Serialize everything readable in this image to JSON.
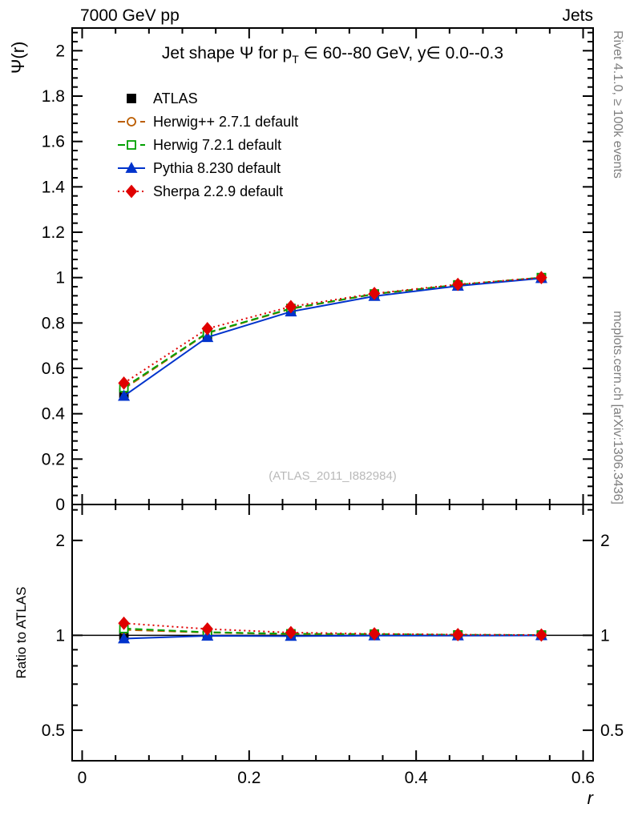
{
  "header": {
    "left": "7000 GeV pp",
    "right": "Jets"
  },
  "title": {
    "pre": "Jet shape Ψ for p",
    "sub": "T",
    "post": " ∈ 60--80 GeV, y∈ 0.0--0.3"
  },
  "watermark": "(ATLAS_2011_I882984)",
  "side_notes": {
    "top": "Rivet 4.1.0, ≥ 100k events",
    "bottom": "mcplots.cern.ch [arXiv:1306.3436]"
  },
  "colors": {
    "frame": "#000000",
    "side_note_gray": "#7f7f7f",
    "watermark_gray": "#b9b9b9"
  },
  "chart_data": {
    "type": "line",
    "title": "Jet shape Ψ for p_T ∈ 60--80 GeV, y∈ 0.0--0.3",
    "xlabel": "r",
    "ylabel_main": "Ψ(r)",
    "ylabel_ratio": "Ratio to ATLAS",
    "x": [
      0.05,
      0.15,
      0.25,
      0.35,
      0.45,
      0.55
    ],
    "xlim": [
      -0.012,
      0.612
    ],
    "main_ylim": [
      0,
      2.1
    ],
    "ratio_ylim": [
      0.4,
      2.6
    ],
    "ratio_log": true,
    "legend_position": "top-left-inside",
    "grid": false,
    "x_ticks": {
      "major": [
        0,
        0.2,
        0.4,
        0.6
      ],
      "labels": [
        "0",
        "0.2",
        "0.4",
        "0.6"
      ],
      "minor_step": 0.04
    },
    "main_y_ticks": {
      "major": [
        0,
        0.2,
        0.4,
        0.6,
        0.8,
        1,
        1.2,
        1.4,
        1.6,
        1.8,
        2
      ],
      "labels": [
        "0",
        "0.2",
        "0.4",
        "0.6",
        "0.8",
        "1",
        "1.2",
        "1.4",
        "1.6",
        "1.8",
        "2"
      ],
      "minor_step": 0.04
    },
    "ratio_y_ticks": {
      "major": [
        0.5,
        1,
        2
      ],
      "labels": [
        "0.5",
        "1",
        "2"
      ],
      "minor": [
        0.6,
        0.7,
        0.8,
        0.9,
        2.5
      ]
    },
    "series": [
      {
        "name": "ATLAS",
        "color": "#000000",
        "marker": "square",
        "filled": true,
        "line": "none",
        "values": [
          0.49,
          0.74,
          0.855,
          0.92,
          0.965,
          0.998
        ],
        "errors": [
          0.012,
          0.009,
          0.007,
          0.005,
          0.004,
          0.003
        ],
        "ratio": [
          1,
          1,
          1,
          1,
          1,
          1
        ]
      },
      {
        "name": "Herwig++ 2.7.1 default",
        "color": "#bb5d00",
        "marker": "circle",
        "filled": false,
        "line": "dash",
        "values": [
          0.51,
          0.755,
          0.862,
          0.927,
          0.968,
          1.0
        ],
        "ratio": [
          1.041,
          1.02,
          1.008,
          1.008,
          1.003,
          1.002
        ]
      },
      {
        "name": "Herwig 7.2.1 default",
        "color": "#00a000",
        "marker": "square",
        "filled": false,
        "line": "dash",
        "values": [
          0.515,
          0.757,
          0.864,
          0.928,
          0.968,
          1.0
        ],
        "ratio": [
          1.051,
          1.023,
          1.011,
          1.009,
          1.003,
          1.002
        ]
      },
      {
        "name": "Pythia 8.230 default",
        "color": "#0033cc",
        "marker": "triangle",
        "filled": true,
        "line": "solid",
        "values": [
          0.478,
          0.737,
          0.85,
          0.918,
          0.963,
          0.997
        ],
        "ratio": [
          0.976,
          0.996,
          0.994,
          0.998,
          0.998,
          0.999
        ]
      },
      {
        "name": "Sherpa 2.2.9 default",
        "color": "#e00000",
        "marker": "diamond",
        "filled": true,
        "line": "dot",
        "values": [
          0.535,
          0.775,
          0.872,
          0.93,
          0.97,
          1.0
        ],
        "ratio": [
          1.092,
          1.047,
          1.02,
          1.011,
          1.005,
          1.002
        ]
      }
    ]
  }
}
